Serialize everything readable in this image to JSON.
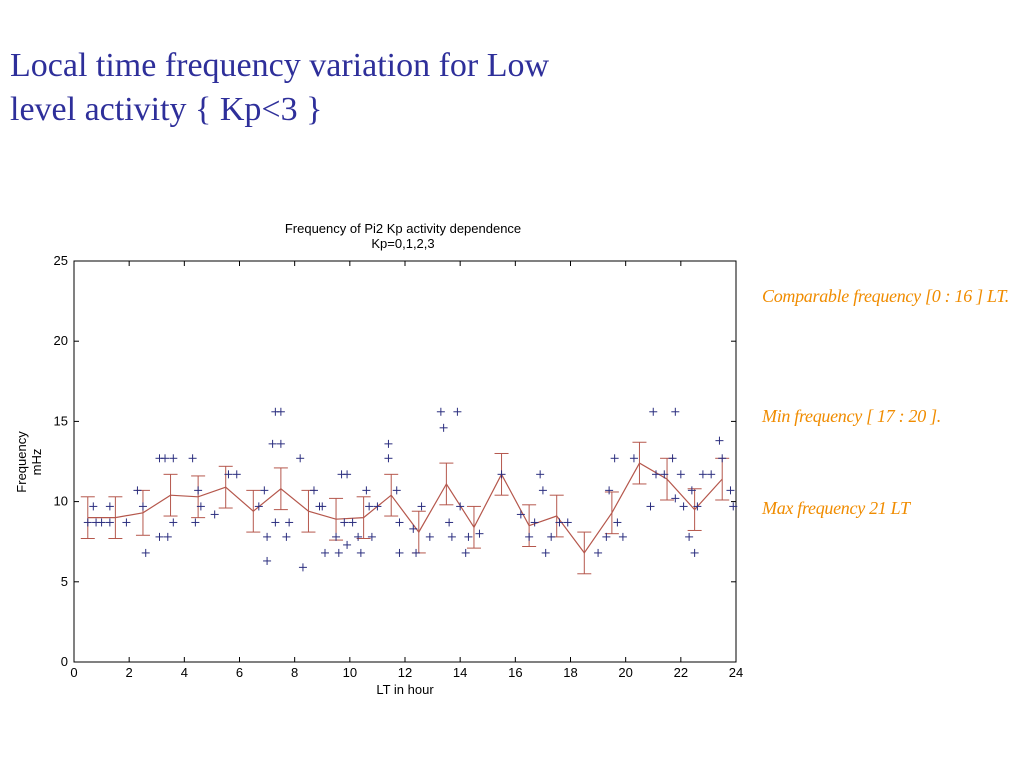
{
  "slide": {
    "title_line1": "Local time frequency variation for Low",
    "title_line2": "level activity { Kp<3 }"
  },
  "notes": {
    "comparable": "Comparable frequency [0 : 16 ] LT.",
    "min": "Min frequency [ 17 : 20 ].",
    "max": "Max frequency 21 LT"
  },
  "colors": {
    "title": "#2e2f9a",
    "notes": "#f08c00",
    "scatter": "#2b2e7f",
    "mean_line": "#b5574c"
  },
  "chart_data": {
    "type": "scatter",
    "title": "Frequency of Pi2 Kp activity dependence",
    "subtitle": "Kp=0,1,2,3",
    "xlabel": "LT in hour",
    "ylabel_line1": "Frequency",
    "ylabel_line2": "mHz",
    "xlim": [
      0,
      24
    ],
    "ylim": [
      0,
      25
    ],
    "xticks": [
      0,
      2,
      4,
      6,
      8,
      10,
      12,
      14,
      16,
      18,
      20,
      22,
      24
    ],
    "yticks": [
      0,
      5,
      10,
      15,
      20,
      25
    ],
    "grid": false,
    "series": [
      {
        "type": "scatter",
        "marker": "+",
        "points": [
          [
            0.5,
            8.7
          ],
          [
            0.7,
            9.7
          ],
          [
            0.8,
            8.7
          ],
          [
            1.0,
            8.7
          ],
          [
            1.3,
            9.7
          ],
          [
            1.3,
            8.7
          ],
          [
            1.9,
            8.7
          ],
          [
            2.3,
            10.7
          ],
          [
            2.5,
            9.7
          ],
          [
            2.6,
            6.8
          ],
          [
            3.1,
            12.7
          ],
          [
            3.1,
            7.8
          ],
          [
            3.3,
            12.7
          ],
          [
            3.4,
            7.8
          ],
          [
            3.6,
            12.7
          ],
          [
            3.6,
            8.7
          ],
          [
            4.3,
            12.7
          ],
          [
            4.4,
            8.7
          ],
          [
            4.5,
            10.7
          ],
          [
            4.6,
            9.7
          ],
          [
            5.1,
            9.2
          ],
          [
            5.6,
            11.7
          ],
          [
            5.9,
            11.7
          ],
          [
            6.7,
            9.7
          ],
          [
            6.9,
            10.7
          ],
          [
            7.0,
            6.3
          ],
          [
            7.0,
            7.8
          ],
          [
            7.2,
            13.6
          ],
          [
            7.3,
            15.6
          ],
          [
            7.3,
            8.7
          ],
          [
            7.5,
            15.6
          ],
          [
            7.5,
            13.6
          ],
          [
            7.7,
            7.8
          ],
          [
            7.8,
            8.7
          ],
          [
            8.2,
            12.7
          ],
          [
            8.3,
            5.9
          ],
          [
            8.7,
            10.7
          ],
          [
            8.9,
            9.7
          ],
          [
            9.0,
            9.7
          ],
          [
            9.1,
            6.8
          ],
          [
            9.5,
            7.8
          ],
          [
            9.6,
            6.8
          ],
          [
            9.7,
            11.7
          ],
          [
            9.8,
            8.7
          ],
          [
            9.9,
            7.3
          ],
          [
            9.9,
            11.7
          ],
          [
            10.1,
            8.7
          ],
          [
            10.3,
            7.8
          ],
          [
            10.4,
            6.8
          ],
          [
            10.6,
            10.7
          ],
          [
            10.7,
            9.7
          ],
          [
            10.8,
            7.8
          ],
          [
            11.0,
            9.7
          ],
          [
            11.4,
            13.6
          ],
          [
            11.4,
            12.7
          ],
          [
            11.7,
            10.7
          ],
          [
            11.8,
            8.7
          ],
          [
            11.8,
            6.8
          ],
          [
            12.3,
            8.3
          ],
          [
            12.4,
            6.8
          ],
          [
            12.6,
            9.7
          ],
          [
            12.9,
            7.8
          ],
          [
            13.3,
            15.6
          ],
          [
            13.4,
            14.6
          ],
          [
            13.6,
            8.7
          ],
          [
            13.7,
            7.8
          ],
          [
            13.9,
            15.6
          ],
          [
            14.0,
            9.7
          ],
          [
            14.2,
            6.8
          ],
          [
            14.3,
            7.8
          ],
          [
            14.7,
            8.0
          ],
          [
            15.5,
            11.7
          ],
          [
            16.2,
            9.2
          ],
          [
            16.5,
            7.8
          ],
          [
            16.7,
            8.7
          ],
          [
            16.9,
            11.7
          ],
          [
            17.0,
            10.7
          ],
          [
            17.1,
            6.8
          ],
          [
            17.3,
            7.8
          ],
          [
            17.6,
            8.7
          ],
          [
            17.9,
            8.7
          ],
          [
            19.0,
            6.8
          ],
          [
            19.3,
            7.8
          ],
          [
            19.4,
            10.7
          ],
          [
            19.6,
            12.7
          ],
          [
            19.7,
            8.7
          ],
          [
            19.9,
            7.8
          ],
          [
            20.3,
            12.7
          ],
          [
            20.9,
            9.7
          ],
          [
            21.0,
            15.6
          ],
          [
            21.1,
            11.7
          ],
          [
            21.4,
            11.7
          ],
          [
            21.7,
            12.7
          ],
          [
            21.8,
            15.6
          ],
          [
            21.8,
            10.2
          ],
          [
            22.0,
            11.7
          ],
          [
            22.1,
            9.7
          ],
          [
            22.3,
            7.8
          ],
          [
            22.4,
            10.7
          ],
          [
            22.5,
            6.8
          ],
          [
            22.6,
            9.7
          ],
          [
            22.8,
            11.7
          ],
          [
            23.1,
            11.7
          ],
          [
            23.4,
            13.8
          ],
          [
            23.5,
            12.7
          ],
          [
            23.8,
            10.7
          ],
          [
            23.9,
            9.7
          ]
        ]
      },
      {
        "type": "line",
        "error_bars": true,
        "points": [
          [
            0.5,
            9.0,
            1.3
          ],
          [
            1.5,
            9.0,
            1.3
          ],
          [
            2.5,
            9.3,
            1.4
          ],
          [
            3.5,
            10.4,
            1.3
          ],
          [
            4.5,
            10.3,
            1.3
          ],
          [
            5.5,
            10.9,
            1.3
          ],
          [
            6.5,
            9.4,
            1.3
          ],
          [
            7.5,
            10.8,
            1.3
          ],
          [
            8.5,
            9.4,
            1.3
          ],
          [
            9.5,
            8.9,
            1.3
          ],
          [
            10.5,
            9.0,
            1.3
          ],
          [
            11.5,
            10.4,
            1.3
          ],
          [
            12.5,
            8.1,
            1.3
          ],
          [
            13.5,
            11.1,
            1.3
          ],
          [
            14.5,
            8.4,
            1.3
          ],
          [
            15.5,
            11.7,
            1.3
          ],
          [
            16.5,
            8.5,
            1.3
          ],
          [
            17.5,
            9.1,
            1.3
          ],
          [
            18.5,
            6.8,
            1.3
          ],
          [
            19.5,
            9.3,
            1.3
          ],
          [
            20.5,
            12.4,
            1.3
          ],
          [
            21.5,
            11.4,
            1.3
          ],
          [
            22.5,
            9.5,
            1.3
          ],
          [
            23.5,
            11.4,
            1.3
          ]
        ]
      }
    ]
  }
}
